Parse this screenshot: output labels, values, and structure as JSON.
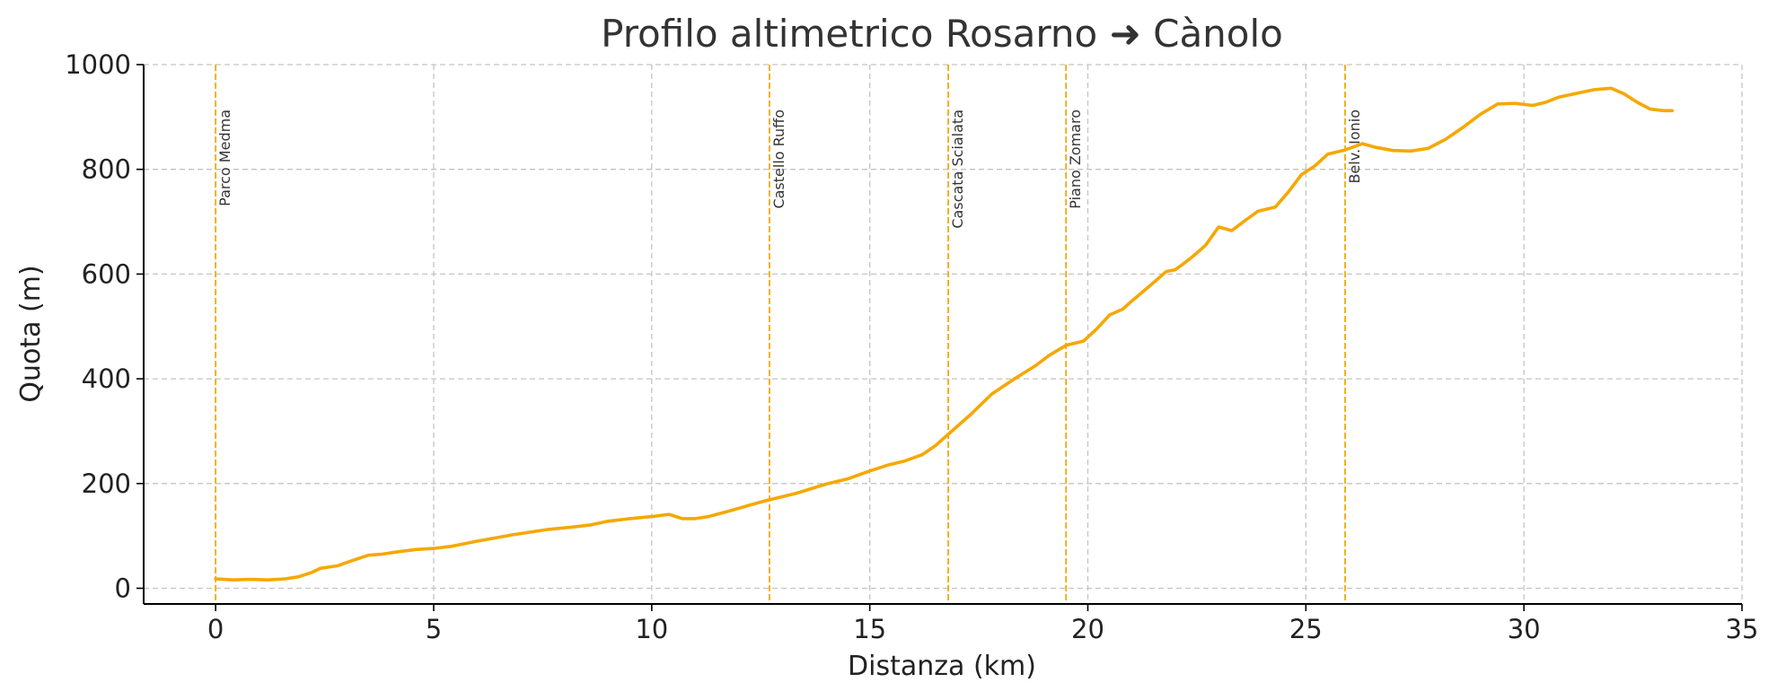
{
  "colors": {
    "line": "#F5A800",
    "grid": "#c4c4c4",
    "text": "#333333"
  },
  "chart_data": {
    "type": "line",
    "title": "Profilo altimetrico Rosarno ➜ Cànolo",
    "xlabel": "Distanza (km)",
    "ylabel": "Quota (m)",
    "xlim": [
      -1.65,
      35
    ],
    "ylim": [
      -30,
      1000
    ],
    "grid": true,
    "xticks": [
      0,
      5,
      10,
      15,
      20,
      25,
      30,
      35
    ],
    "yticks": [
      0,
      200,
      400,
      600,
      800,
      1000
    ],
    "series": [
      {
        "x": [
          0,
          0.4,
          0.8,
          1.2,
          1.6,
          1.9,
          2.2,
          2.4,
          2.8,
          3.1,
          3.5,
          3.8,
          4.2,
          4.6,
          5.0,
          5.4,
          6.0,
          6.8,
          7.6,
          8.2,
          8.6,
          9.0,
          9.5,
          10.0,
          10.4,
          10.7,
          11.0,
          11.3,
          11.8,
          12.3,
          12.7,
          13.3,
          14.0,
          14.5,
          15.0,
          15.4,
          15.8,
          16.2,
          16.5,
          16.8,
          17.3,
          17.8,
          18.3,
          18.8,
          19.1,
          19.5,
          19.9,
          20.2,
          20.5,
          20.8,
          21.0,
          21.4,
          21.8,
          22.0,
          22.2,
          22.4,
          22.7,
          23.0,
          23.3,
          23.6,
          23.9,
          24.3,
          24.6,
          24.9,
          25.2,
          25.5,
          25.9,
          26.3,
          26.6,
          27.0,
          27.4,
          27.8,
          28.2,
          28.6,
          29.0,
          29.4,
          29.8,
          30.2,
          30.5,
          30.8,
          31.2,
          31.6,
          32.0,
          32.3,
          32.6,
          32.9,
          33.2,
          33.4
        ],
        "y": [
          18,
          16,
          17,
          16,
          18,
          22,
          30,
          38,
          43,
          52,
          63,
          65,
          70,
          74,
          76,
          80,
          90,
          102,
          112,
          117,
          121,
          128,
          133,
          137,
          141,
          133,
          133,
          137,
          148,
          160,
          169,
          181,
          199,
          209,
          224,
          235,
          243,
          255,
          272,
          294,
          331,
          371,
          399,
          425,
          444,
          464,
          472,
          495,
          522,
          533,
          548,
          576,
          605,
          608,
          620,
          633,
          655,
          690,
          683,
          702,
          720,
          728,
          757,
          790,
          806,
          829,
          837,
          849,
          842,
          836,
          835,
          840,
          857,
          880,
          905,
          925,
          926,
          922,
          928,
          938,
          945,
          952,
          955,
          944,
          928,
          915,
          912,
          912
        ]
      }
    ],
    "markers": [
      {
        "x": 0,
        "label": "Parco Medma"
      },
      {
        "x": 12.7,
        "label": "Castello Ruffo"
      },
      {
        "x": 16.8,
        "label": "Cascata Scialata"
      },
      {
        "x": 19.5,
        "label": "Piano Zomaro"
      },
      {
        "x": 25.9,
        "label": "Belv. Ionio"
      }
    ]
  }
}
